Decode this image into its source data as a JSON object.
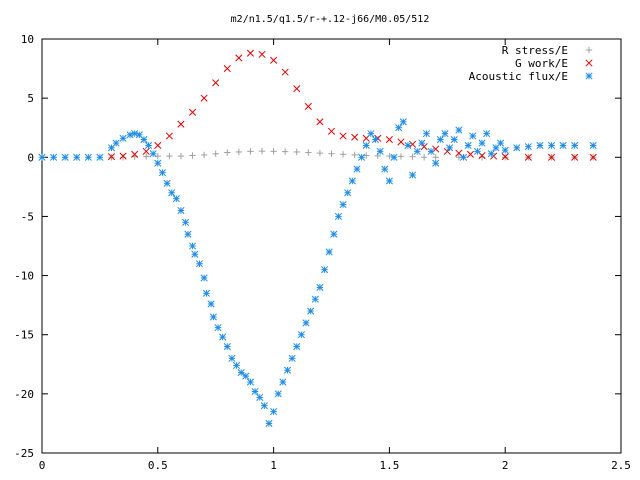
{
  "chart_data": {
    "type": "scatter",
    "title": "m2/n1.5/q1.5/r-+.12-j66/M0.05/512",
    "xlabel": "",
    "ylabel": "",
    "xlim": [
      0,
      2.5
    ],
    "ylim": [
      -25,
      10
    ],
    "x_ticks": [
      "0",
      "0.5",
      "1",
      "1.5",
      "2",
      "2.5"
    ],
    "y_ticks": [
      "10",
      "5",
      "0",
      "-5",
      "-10",
      "-15",
      "-20",
      "-25"
    ],
    "grid": false,
    "legend_position": "top-right",
    "series": [
      {
        "name": "R stress/E",
        "marker": "plus",
        "color": "#a0a0a0",
        "points": [
          [
            0.3,
            0.0
          ],
          [
            0.35,
            0.0
          ],
          [
            0.4,
            0.05
          ],
          [
            0.45,
            0.08
          ],
          [
            0.5,
            0.1
          ],
          [
            0.55,
            0.1
          ],
          [
            0.6,
            0.1
          ],
          [
            0.65,
            0.15
          ],
          [
            0.7,
            0.2
          ],
          [
            0.75,
            0.3
          ],
          [
            0.8,
            0.4
          ],
          [
            0.85,
            0.45
          ],
          [
            0.9,
            0.5
          ],
          [
            0.95,
            0.52
          ],
          [
            1.0,
            0.5
          ],
          [
            1.05,
            0.48
          ],
          [
            1.1,
            0.45
          ],
          [
            1.15,
            0.4
          ],
          [
            1.2,
            0.35
          ],
          [
            1.25,
            0.3
          ],
          [
            1.3,
            0.25
          ],
          [
            1.35,
            0.2
          ],
          [
            1.4,
            0.15
          ],
          [
            1.45,
            0.12
          ],
          [
            1.5,
            0.1
          ],
          [
            1.55,
            0.08
          ],
          [
            1.6,
            0.05
          ],
          [
            1.65,
            0.0
          ],
          [
            1.7,
            0.0
          ],
          [
            1.8,
            0.0
          ],
          [
            1.9,
            0.0
          ],
          [
            2.0,
            0.0
          ],
          [
            2.1,
            0.0
          ],
          [
            2.2,
            0.0
          ],
          [
            2.3,
            0.0
          ],
          [
            2.38,
            0.0
          ]
        ]
      },
      {
        "name": "G work/E",
        "marker": "cross",
        "color": "#e00000",
        "points": [
          [
            0.3,
            0.05
          ],
          [
            0.35,
            0.1
          ],
          [
            0.4,
            0.25
          ],
          [
            0.45,
            0.5
          ],
          [
            0.5,
            1.0
          ],
          [
            0.55,
            1.8
          ],
          [
            0.6,
            2.8
          ],
          [
            0.65,
            3.8
          ],
          [
            0.7,
            5.0
          ],
          [
            0.75,
            6.3
          ],
          [
            0.8,
            7.5
          ],
          [
            0.85,
            8.4
          ],
          [
            0.9,
            8.8
          ],
          [
            0.95,
            8.7
          ],
          [
            1.0,
            8.2
          ],
          [
            1.05,
            7.2
          ],
          [
            1.1,
            5.8
          ],
          [
            1.15,
            4.3
          ],
          [
            1.2,
            3.0
          ],
          [
            1.25,
            2.2
          ],
          [
            1.3,
            1.8
          ],
          [
            1.35,
            1.7
          ],
          [
            1.4,
            1.6
          ],
          [
            1.45,
            1.6
          ],
          [
            1.5,
            1.5
          ],
          [
            1.55,
            1.3
          ],
          [
            1.6,
            1.1
          ],
          [
            1.65,
            0.9
          ],
          [
            1.7,
            0.7
          ],
          [
            1.75,
            0.5
          ],
          [
            1.8,
            0.35
          ],
          [
            1.85,
            0.25
          ],
          [
            1.9,
            0.15
          ],
          [
            1.95,
            0.1
          ],
          [
            2.0,
            0.05
          ],
          [
            2.1,
            0.0
          ],
          [
            2.2,
            0.0
          ],
          [
            2.3,
            0.0
          ],
          [
            2.38,
            0.0
          ]
        ]
      },
      {
        "name": "Acoustic flux/E",
        "marker": "star",
        "color": "#1e8ce8",
        "points": [
          [
            0.0,
            0.0
          ],
          [
            0.05,
            0.0
          ],
          [
            0.1,
            0.0
          ],
          [
            0.15,
            0.0
          ],
          [
            0.2,
            0.0
          ],
          [
            0.25,
            0.0
          ],
          [
            0.3,
            0.8
          ],
          [
            0.32,
            1.2
          ],
          [
            0.35,
            1.6
          ],
          [
            0.38,
            1.9
          ],
          [
            0.4,
            2.0
          ],
          [
            0.42,
            1.9
          ],
          [
            0.44,
            1.5
          ],
          [
            0.46,
            1.0
          ],
          [
            0.48,
            0.3
          ],
          [
            0.5,
            -0.5
          ],
          [
            0.52,
            -1.3
          ],
          [
            0.54,
            -2.2
          ],
          [
            0.56,
            -3.0
          ],
          [
            0.58,
            -3.5
          ],
          [
            0.6,
            -4.5
          ],
          [
            0.62,
            -5.5
          ],
          [
            0.63,
            -6.5
          ],
          [
            0.65,
            -7.5
          ],
          [
            0.66,
            -8.2
          ],
          [
            0.68,
            -9.0
          ],
          [
            0.7,
            -10.2
          ],
          [
            0.71,
            -11.5
          ],
          [
            0.73,
            -12.4
          ],
          [
            0.74,
            -13.5
          ],
          [
            0.76,
            -14.4
          ],
          [
            0.78,
            -15.2
          ],
          [
            0.8,
            -16.0
          ],
          [
            0.82,
            -17.0
          ],
          [
            0.84,
            -17.6
          ],
          [
            0.86,
            -18.2
          ],
          [
            0.88,
            -18.5
          ],
          [
            0.9,
            -19.0
          ],
          [
            0.92,
            -19.8
          ],
          [
            0.94,
            -20.3
          ],
          [
            0.96,
            -21.0
          ],
          [
            0.98,
            -22.5
          ],
          [
            1.0,
            -21.5
          ],
          [
            1.02,
            -20.0
          ],
          [
            1.04,
            -19.0
          ],
          [
            1.06,
            -18.0
          ],
          [
            1.08,
            -17.0
          ],
          [
            1.1,
            -16.0
          ],
          [
            1.12,
            -15.0
          ],
          [
            1.14,
            -14.0
          ],
          [
            1.16,
            -13.0
          ],
          [
            1.18,
            -12.0
          ],
          [
            1.2,
            -11.0
          ],
          [
            1.22,
            -9.5
          ],
          [
            1.24,
            -8.0
          ],
          [
            1.26,
            -6.5
          ],
          [
            1.28,
            -5.0
          ],
          [
            1.3,
            -4.0
          ],
          [
            1.32,
            -3.0
          ],
          [
            1.34,
            -2.0
          ],
          [
            1.36,
            -1.0
          ],
          [
            1.38,
            0.0
          ],
          [
            1.4,
            1.0
          ],
          [
            1.42,
            2.0
          ],
          [
            1.44,
            1.5
          ],
          [
            1.46,
            0.5
          ],
          [
            1.48,
            -1.0
          ],
          [
            1.5,
            -2.0
          ],
          [
            1.52,
            0.0
          ],
          [
            1.54,
            2.5
          ],
          [
            1.56,
            3.0
          ],
          [
            1.58,
            1.0
          ],
          [
            1.6,
            -1.5
          ],
          [
            1.62,
            0.5
          ],
          [
            1.64,
            1.2
          ],
          [
            1.66,
            2.0
          ],
          [
            1.68,
            0.5
          ],
          [
            1.7,
            -0.5
          ],
          [
            1.72,
            1.5
          ],
          [
            1.74,
            2.0
          ],
          [
            1.76,
            0.8
          ],
          [
            1.78,
            1.5
          ],
          [
            1.8,
            2.3
          ],
          [
            1.82,
            0.0
          ],
          [
            1.84,
            1.0
          ],
          [
            1.86,
            1.8
          ],
          [
            1.88,
            0.5
          ],
          [
            1.9,
            1.2
          ],
          [
            1.92,
            2.0
          ],
          [
            1.94,
            0.3
          ],
          [
            1.96,
            0.8
          ],
          [
            1.98,
            1.2
          ],
          [
            2.0,
            0.6
          ],
          [
            2.05,
            0.8
          ],
          [
            2.1,
            0.9
          ],
          [
            2.15,
            1.0
          ],
          [
            2.2,
            1.0
          ],
          [
            2.25,
            1.0
          ],
          [
            2.3,
            1.0
          ],
          [
            2.38,
            1.0
          ]
        ]
      }
    ]
  }
}
